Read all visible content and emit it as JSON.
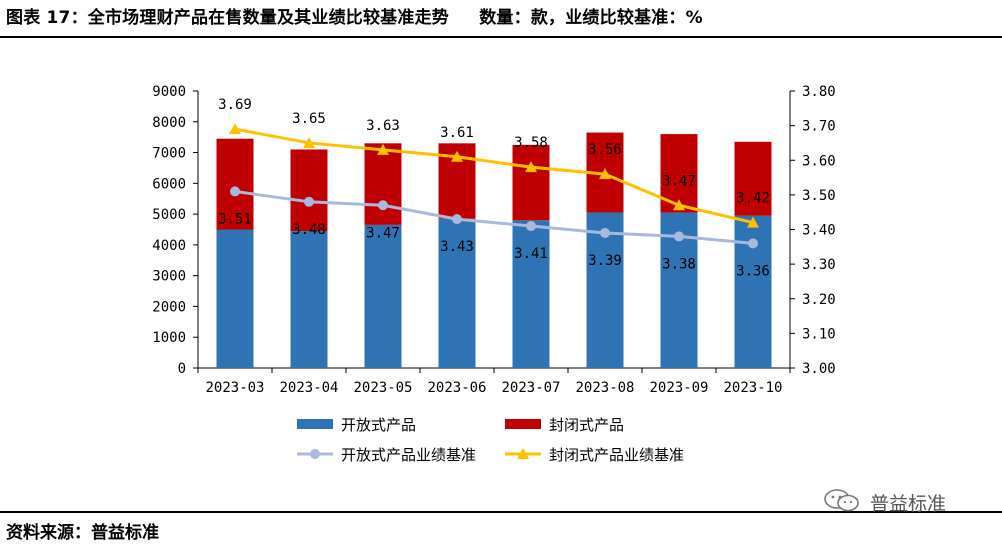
{
  "header": {
    "title": "图表 17：全市场理财产品在售数量及其业绩比较基准走势",
    "units": "数量：款，业绩比较基准：%"
  },
  "footer": {
    "source": "资料来源：普益标准"
  },
  "watermark": {
    "text": "普益标准"
  },
  "colors": {
    "open": "#2e74b5",
    "closed": "#c00000",
    "open_line": "#a9b9dd",
    "closed_line": "#ffc000"
  },
  "chart_data": {
    "type": "bar",
    "stacked": true,
    "categories": [
      "2023-03",
      "2023-04",
      "2023-05",
      "2023-06",
      "2023-07",
      "2023-08",
      "2023-09",
      "2023-10"
    ],
    "series": [
      {
        "name": "开放式产品",
        "kind": "bar",
        "axis": "left",
        "values": [
          4500,
          4450,
          4650,
          4850,
          4800,
          5050,
          5050,
          4950
        ]
      },
      {
        "name": "封闭式产品",
        "kind": "bar",
        "axis": "left",
        "values": [
          2950,
          2650,
          2650,
          2450,
          2450,
          2600,
          2550,
          2400
        ]
      },
      {
        "name": "开放式产品业绩基准",
        "kind": "line",
        "axis": "right",
        "marker": "circle",
        "values": [
          3.51,
          3.48,
          3.47,
          3.43,
          3.41,
          3.39,
          3.38,
          3.36
        ],
        "labels": [
          "3.51",
          "3.48",
          "3.47",
          "3.43",
          "3.41",
          "3.39",
          "3.38",
          "3.36"
        ]
      },
      {
        "name": "封闭式产品业绩基准",
        "kind": "line",
        "axis": "right",
        "marker": "triangle",
        "values": [
          3.69,
          3.65,
          3.63,
          3.61,
          3.58,
          3.56,
          3.47,
          3.42
        ],
        "labels": [
          "3.69",
          "3.65",
          "3.63",
          "3.61",
          "3.58",
          "3.56",
          "3.47",
          "3.42"
        ]
      }
    ],
    "y_left": {
      "min": 0,
      "max": 9000,
      "step": 1000,
      "ticks": [
        "0",
        "1000",
        "2000",
        "3000",
        "4000",
        "5000",
        "6000",
        "7000",
        "8000",
        "9000"
      ]
    },
    "y_right": {
      "min": 3.0,
      "max": 3.8,
      "step": 0.1,
      "ticks": [
        "3.00",
        "3.10",
        "3.20",
        "3.30",
        "3.40",
        "3.50",
        "3.60",
        "3.70",
        "3.80"
      ]
    },
    "grid": false,
    "legend_position": "bottom"
  }
}
